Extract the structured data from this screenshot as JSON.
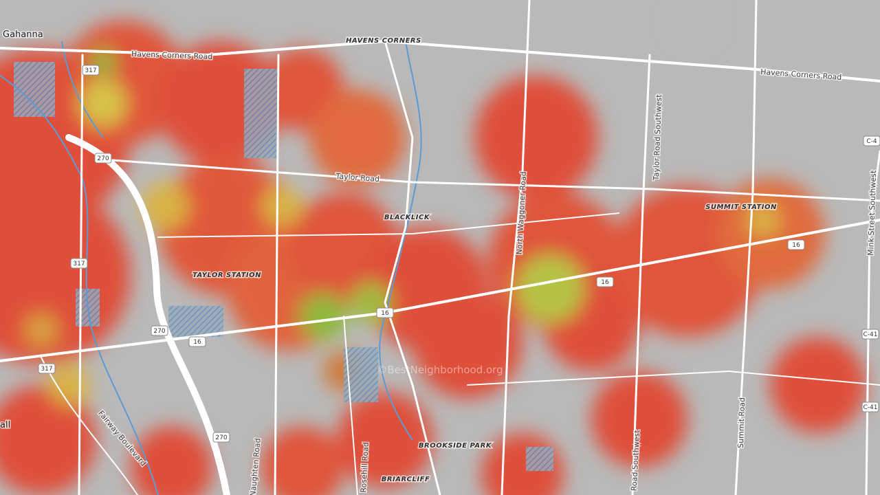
{
  "map": {
    "places": [
      "Gahanna",
      "HAVENS CORNERS",
      "BLACKLICK",
      "TAYLOR STATION",
      "SUMMIT STATION",
      "BROOKSIDE PARK",
      "BRIARCLIFF",
      "all"
    ],
    "roads": [
      "Havens Corners Road",
      "Havens Corners Road",
      "Taylor Road",
      "North Waggoner Road",
      "Taylor Road Southwest",
      "Mink Street Southwest",
      "Fairway Boulevard",
      "Naughten Road",
      "Rosehill Road",
      "Road Southwest",
      "Summit Road"
    ],
    "shields": [
      "317",
      "317",
      "317",
      "270",
      "270",
      "270",
      "16",
      "16",
      "16",
      "16",
      "C-4",
      "C-41",
      "C-41"
    ],
    "watermark": "©BestNeighborhood.org"
  }
}
